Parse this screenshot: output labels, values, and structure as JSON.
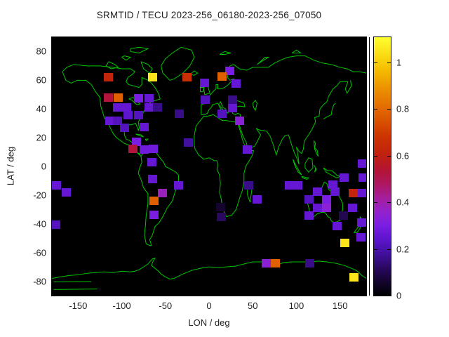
{
  "title": "SRMTID / TECU 2023-256_06180-2023-256_07050",
  "axes": {
    "x_label": "LON / deg",
    "y_label": "LAT / deg",
    "x_ticks": [
      -150,
      -100,
      -50,
      0,
      50,
      100,
      150
    ],
    "y_ticks": [
      80,
      60,
      40,
      20,
      0,
      -20,
      -40,
      -60,
      -80
    ],
    "xlim": [
      -180,
      180
    ],
    "ylim": [
      -90,
      90
    ]
  },
  "colorbar": {
    "tick_labels": [
      "0",
      "0.2",
      "0.4",
      "0.6",
      "0.8",
      "1"
    ],
    "tick_values": [
      0,
      0.2,
      0.4,
      0.6,
      0.8,
      1
    ],
    "max_value": 1.108,
    "palette_anchors": [
      {
        "v": 0.0,
        "c": "#000000"
      },
      {
        "v": 0.06,
        "c": "#14042e"
      },
      {
        "v": 0.12,
        "c": "#2a0860"
      },
      {
        "v": 0.18,
        "c": "#41109e"
      },
      {
        "v": 0.24,
        "c": "#5c14cc"
      },
      {
        "v": 0.3,
        "c": "#7a1ee4"
      },
      {
        "v": 0.36,
        "c": "#9422cc"
      },
      {
        "v": 0.42,
        "c": "#a51e9a"
      },
      {
        "v": 0.48,
        "c": "#ae1660"
      },
      {
        "v": 0.54,
        "c": "#b41434"
      },
      {
        "v": 0.6,
        "c": "#c02010"
      },
      {
        "v": 0.68,
        "c": "#cc3300"
      },
      {
        "v": 0.78,
        "c": "#e06000"
      },
      {
        "v": 0.88,
        "c": "#eb8d00"
      },
      {
        "v": 0.98,
        "c": "#f6c300"
      },
      {
        "v": 1.108,
        "c": "#ffff30"
      }
    ]
  },
  "map": {
    "background_color": "#000000",
    "coastline_color": "#00c400"
  },
  "chart_data": {
    "type": "heatmap",
    "title": "SRMTID / TECU 2023-256_06180-2023-256_07050",
    "xlabel": "LON / deg",
    "ylabel": "LAT / deg",
    "xlim": [
      -180,
      180
    ],
    "ylim": [
      -90,
      90
    ],
    "value_unit": "TECU",
    "value_range": [
      0,
      1.108
    ],
    "legend_position": "right-colorbar",
    "grid": false,
    "cell_size_deg": {
      "lon": 10.45,
      "lat": 5.87
    },
    "cells": [
      {
        "lon": -115.0,
        "lat": 62.0,
        "value": 0.62
      },
      {
        "lon": -64.7,
        "lat": 62.2,
        "value": 1.05
      },
      {
        "lon": -25.0,
        "lat": 62.0,
        "value": 0.66
      },
      {
        "lon": 23.7,
        "lat": 66.3,
        "value": 0.3
      },
      {
        "lon": 14.9,
        "lat": 62.6,
        "value": 0.78
      },
      {
        "lon": -5.0,
        "lat": 58.0,
        "value": 0.26
      },
      {
        "lon": 31.3,
        "lat": 57.7,
        "value": 0.26
      },
      {
        "lon": -115.0,
        "lat": 47.7,
        "value": 0.53
      },
      {
        "lon": -104.0,
        "lat": 47.7,
        "value": 0.78
      },
      {
        "lon": -80.8,
        "lat": 47.5,
        "value": 0.3
      },
      {
        "lon": -69.0,
        "lat": 47.5,
        "value": 0.26
      },
      {
        "lon": -4.4,
        "lat": 46.7,
        "value": 0.22
      },
      {
        "lon": 26.9,
        "lat": 46.5,
        "value": 0.16
      },
      {
        "lon": -104.5,
        "lat": 41.2,
        "value": 0.26
      },
      {
        "lon": -94.8,
        "lat": 41.2,
        "value": 0.26
      },
      {
        "lon": -68.7,
        "lat": 41.3,
        "value": 0.26
      },
      {
        "lon": -58.7,
        "lat": 41.3,
        "value": 0.16
      },
      {
        "lon": 27.1,
        "lat": 40.8,
        "value": 0.26
      },
      {
        "lon": -92.8,
        "lat": 35.5,
        "value": 0.24
      },
      {
        "lon": -80.8,
        "lat": 35.5,
        "value": 0.22
      },
      {
        "lon": -34.4,
        "lat": 36.6,
        "value": 0.16
      },
      {
        "lon": 14.9,
        "lat": 36.7,
        "value": 0.22
      },
      {
        "lon": -114.1,
        "lat": 31.6,
        "value": 0.26
      },
      {
        "lon": -104.5,
        "lat": 31.6,
        "value": 0.22
      },
      {
        "lon": 35.1,
        "lat": 32.0,
        "value": 0.34
      },
      {
        "lon": -97.0,
        "lat": 26.7,
        "value": 0.22
      },
      {
        "lon": -74.7,
        "lat": 27.4,
        "value": 0.26
      },
      {
        "lon": -83.0,
        "lat": 17.0,
        "value": 0.3
      },
      {
        "lon": -24.1,
        "lat": 16.6,
        "value": 0.18
      },
      {
        "lon": -86.8,
        "lat": 12.2,
        "value": 0.53
      },
      {
        "lon": -74.3,
        "lat": 11.7,
        "value": 0.28
      },
      {
        "lon": -63.9,
        "lat": 12.2,
        "value": 0.28
      },
      {
        "lon": 43.8,
        "lat": 11.7,
        "value": 0.26
      },
      {
        "lon": -65.5,
        "lat": 2.7,
        "value": 0.26
      },
      {
        "lon": 175.2,
        "lat": 2.2,
        "value": 0.26
      },
      {
        "lon": -64.3,
        "lat": -8.6,
        "value": 0.26
      },
      {
        "lon": 154.3,
        "lat": -7.6,
        "value": 0.26
      },
      {
        "lon": 176.0,
        "lat": -7.8,
        "value": 0.26
      },
      {
        "lon": -174.4,
        "lat": -13.2,
        "value": 0.26
      },
      {
        "lon": -34.6,
        "lat": -13.2,
        "value": 0.26
      },
      {
        "lon": 45.8,
        "lat": -13.0,
        "value": 0.16
      },
      {
        "lon": 92.0,
        "lat": -13.0,
        "value": 0.26
      },
      {
        "lon": 102.0,
        "lat": -13.0,
        "value": 0.26
      },
      {
        "lon": 142.2,
        "lat": -12.5,
        "value": 0.26
      },
      {
        "lon": -163.5,
        "lat": -18.1,
        "value": 0.26
      },
      {
        "lon": -53.8,
        "lat": -18.6,
        "value": 0.38
      },
      {
        "lon": 123.8,
        "lat": -17.4,
        "value": 0.26
      },
      {
        "lon": 144.3,
        "lat": -17.6,
        "value": 0.26
      },
      {
        "lon": 165.5,
        "lat": -18.8,
        "value": 0.62
      },
      {
        "lon": 175.2,
        "lat": -18.8,
        "value": 0.26
      },
      {
        "lon": -63.1,
        "lat": -24.2,
        "value": 0.78
      },
      {
        "lon": 55.4,
        "lat": -23.2,
        "value": 0.26
      },
      {
        "lon": 114.9,
        "lat": -23.2,
        "value": 0.22
      },
      {
        "lon": 134.2,
        "lat": -23.2,
        "value": 0.3
      },
      {
        "lon": 13.3,
        "lat": -28.6,
        "value": 0.06
      },
      {
        "lon": 124.2,
        "lat": -29.1,
        "value": 0.26
      },
      {
        "lon": 134.2,
        "lat": -29.1,
        "value": 0.34
      },
      {
        "lon": 164.7,
        "lat": -29.1,
        "value": 0.26
      },
      {
        "lon": -62.7,
        "lat": -33.8,
        "value": 0.3
      },
      {
        "lon": 14.0,
        "lat": -35.2,
        "value": 0.12
      },
      {
        "lon": 114.9,
        "lat": -34.0,
        "value": 0.26
      },
      {
        "lon": 153.5,
        "lat": -34.0,
        "value": 0.1
      },
      {
        "lon": -175.2,
        "lat": -40.4,
        "value": 0.22
      },
      {
        "lon": 146.7,
        "lat": -41.6,
        "value": 0.26
      },
      {
        "lon": 174.8,
        "lat": -39.1,
        "value": 0.26
      },
      {
        "lon": 174.0,
        "lat": -49.2,
        "value": 0.26
      },
      {
        "lon": 155.1,
        "lat": -53.3,
        "value": 1.05
      },
      {
        "lon": 65.1,
        "lat": -67.5,
        "value": 0.34
      },
      {
        "lon": 75.9,
        "lat": -67.5,
        "value": 0.78
      },
      {
        "lon": 115.3,
        "lat": -67.5,
        "value": 0.16
      },
      {
        "lon": 166.0,
        "lat": -77.5,
        "value": 1.05
      }
    ]
  }
}
